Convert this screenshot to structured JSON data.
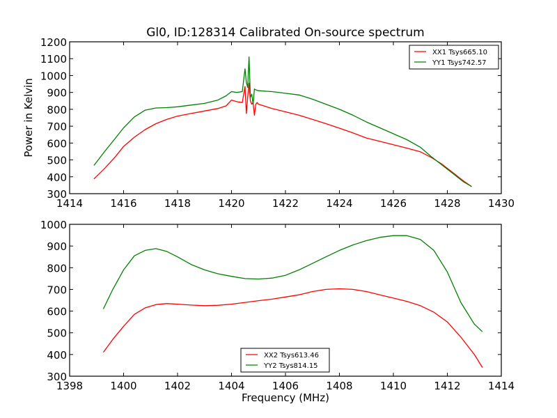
{
  "chart_data": [
    {
      "type": "line",
      "title": "Gl0, ID:128314 Calibrated On-source spectrum",
      "xlabel": "",
      "ylabel": "Power in Kelvin",
      "xlim": [
        1414,
        1430
      ],
      "ylim": [
        300,
        1200
      ],
      "xticks": [
        "1414",
        "1416",
        "1418",
        "1420",
        "1422",
        "1424",
        "1426",
        "1428",
        "1430"
      ],
      "yticks": [
        "300",
        "400",
        "500",
        "600",
        "700",
        "800",
        "900",
        "1000",
        "1100",
        "1200"
      ],
      "legend_position": "top-right",
      "series": [
        {
          "name": "XX1 Tsys665.10",
          "color": "#ff0000",
          "x": [
            1414.9,
            1415.3,
            1415.7,
            1416.0,
            1416.4,
            1416.8,
            1417.2,
            1417.6,
            1418.0,
            1418.5,
            1419.0,
            1419.5,
            1419.8,
            1420.0,
            1420.2,
            1420.4,
            1420.5,
            1420.55,
            1420.6,
            1420.65,
            1420.7,
            1420.75,
            1420.8,
            1420.85,
            1420.9,
            1420.95,
            1421.0,
            1421.5,
            1422.0,
            1422.5,
            1423.0,
            1423.5,
            1424.0,
            1424.5,
            1425.0,
            1425.5,
            1426.0,
            1426.5,
            1427.0,
            1427.4,
            1427.8,
            1428.2,
            1428.6,
            1428.9
          ],
          "y": [
            387,
            450,
            520,
            580,
            635,
            680,
            715,
            740,
            760,
            775,
            790,
            805,
            820,
            855,
            845,
            840,
            935,
            775,
            870,
            955,
            850,
            830,
            840,
            765,
            830,
            840,
            830,
            805,
            785,
            765,
            740,
            715,
            688,
            660,
            630,
            610,
            590,
            570,
            548,
            515,
            475,
            425,
            375,
            342
          ]
        },
        {
          "name": "YY1 Tsys742.57",
          "color": "#008000",
          "x": [
            1414.9,
            1415.3,
            1415.7,
            1416.0,
            1416.4,
            1416.8,
            1417.2,
            1417.6,
            1418.0,
            1418.5,
            1419.0,
            1419.5,
            1419.8,
            1420.0,
            1420.2,
            1420.4,
            1420.5,
            1420.55,
            1420.6,
            1420.65,
            1420.7,
            1420.75,
            1420.8,
            1420.85,
            1420.9,
            1421.0,
            1421.5,
            1422.0,
            1422.5,
            1423.0,
            1423.5,
            1424.0,
            1424.5,
            1425.0,
            1425.5,
            1426.0,
            1426.5,
            1427.0,
            1427.4,
            1427.8,
            1428.2,
            1428.6,
            1428.9
          ],
          "y": [
            467,
            550,
            630,
            690,
            755,
            795,
            808,
            810,
            815,
            825,
            835,
            855,
            880,
            905,
            900,
            905,
            1040,
            960,
            930,
            1110,
            870,
            890,
            830,
            920,
            915,
            910,
            905,
            895,
            885,
            860,
            830,
            800,
            765,
            725,
            690,
            655,
            620,
            575,
            520,
            470,
            420,
            370,
            342
          ]
        }
      ]
    },
    {
      "type": "line",
      "title": "",
      "xlabel": "Frequency (MHz)",
      "ylabel": "",
      "xlim": [
        1398,
        1414
      ],
      "ylim": [
        300,
        1000
      ],
      "xticks": [
        "1398",
        "1400",
        "1402",
        "1404",
        "1406",
        "1408",
        "1410",
        "1412",
        "1414"
      ],
      "yticks": [
        "300",
        "400",
        "500",
        "600",
        "700",
        "800",
        "900",
        "1000"
      ],
      "legend_position": "lower-center",
      "series": [
        {
          "name": "XX2 Tsys613.46",
          "color": "#ff0000",
          "x": [
            1399.25,
            1399.6,
            1400.0,
            1400.4,
            1400.8,
            1401.2,
            1401.6,
            1402.0,
            1402.5,
            1403.0,
            1403.5,
            1404.0,
            1404.5,
            1405.0,
            1405.5,
            1406.0,
            1406.5,
            1407.0,
            1407.5,
            1408.0,
            1408.5,
            1409.0,
            1409.5,
            1410.0,
            1410.5,
            1411.0,
            1411.5,
            1412.0,
            1412.5,
            1413.0,
            1413.3
          ],
          "y": [
            410,
            470,
            530,
            585,
            615,
            630,
            635,
            632,
            628,
            625,
            627,
            632,
            640,
            648,
            655,
            665,
            675,
            690,
            700,
            703,
            700,
            690,
            675,
            660,
            645,
            625,
            595,
            550,
            480,
            400,
            340
          ]
        },
        {
          "name": "YY2 Tsys814.15",
          "color": "#008000",
          "x": [
            1399.25,
            1399.6,
            1400.0,
            1400.4,
            1400.8,
            1401.2,
            1401.6,
            1402.0,
            1402.5,
            1403.0,
            1403.5,
            1404.0,
            1404.5,
            1405.0,
            1405.5,
            1406.0,
            1406.5,
            1407.0,
            1407.5,
            1408.0,
            1408.5,
            1409.0,
            1409.5,
            1410.0,
            1410.5,
            1411.0,
            1411.5,
            1412.0,
            1412.5,
            1413.0,
            1413.3
          ],
          "y": [
            610,
            700,
            790,
            855,
            880,
            888,
            875,
            850,
            815,
            790,
            772,
            760,
            750,
            748,
            752,
            765,
            790,
            820,
            850,
            880,
            905,
            925,
            940,
            948,
            948,
            930,
            880,
            780,
            640,
            540,
            505
          ]
        }
      ]
    }
  ]
}
